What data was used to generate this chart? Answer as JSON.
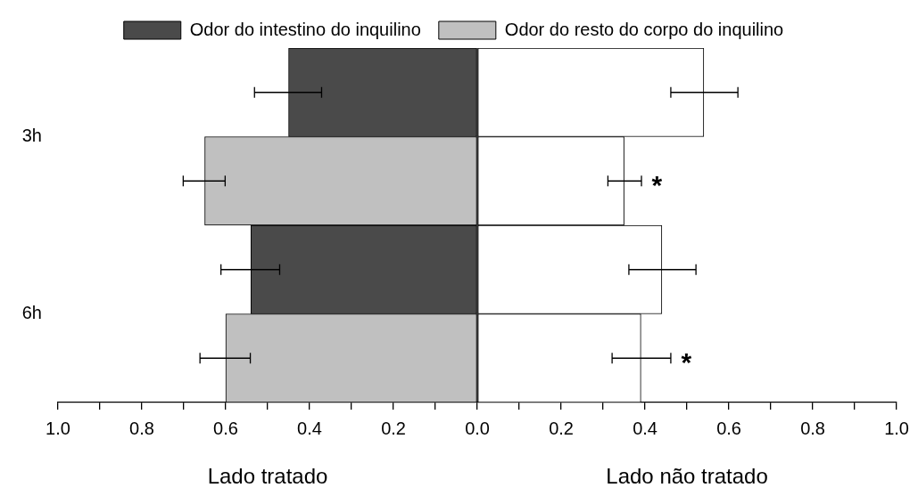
{
  "chart_data": {
    "type": "bar",
    "orientation": "horizontal",
    "stacked": true,
    "categories": [
      "3h",
      null,
      "6h",
      null
    ],
    "series": [
      {
        "name": "Odor do intestino do inquilino",
        "color": "#4a4a4a",
        "values": [
          -0.45,
          null,
          -0.54,
          null
        ],
        "errors": [
          0.08,
          null,
          0.07,
          null
        ]
      },
      {
        "name": "Odor do resto do corpo do inquilino",
        "color": "#c0c0c0",
        "values": [
          null,
          -0.65,
          null,
          -0.6
        ],
        "errors": [
          null,
          0.05,
          null,
          0.06
        ]
      },
      {
        "color": "#ffffff",
        "values": [
          0.54,
          null,
          0.44,
          null
        ],
        "errors": [
          0.08,
          null,
          0.08,
          null
        ]
      },
      {
        "color": "#ffffff",
        "values": [
          null,
          0.35,
          null,
          0.39
        ],
        "errors": [
          null,
          0.04,
          null,
          0.07
        ]
      }
    ],
    "xlim": [
      -1,
      1
    ],
    "xticks": [
      {
        "value": -1,
        "label": "1.0"
      },
      {
        "value": -0.9,
        "label": null
      },
      {
        "value": -0.8,
        "label": "0.8"
      },
      {
        "value": -0.7,
        "label": null
      },
      {
        "value": -0.6,
        "label": "0.6"
      },
      {
        "value": -0.5,
        "label": null
      },
      {
        "value": -0.4,
        "label": "0.4"
      },
      {
        "value": -0.3,
        "label": null
      },
      {
        "value": -0.2,
        "label": "0.2"
      },
      {
        "value": -0.1,
        "label": null
      },
      {
        "value": 0,
        "label": "0.0"
      },
      {
        "value": 0.1,
        "label": null
      },
      {
        "value": 0.2,
        "label": "0.2"
      },
      {
        "value": 0.3,
        "label": null
      },
      {
        "value": 0.4,
        "label": "0.4"
      },
      {
        "value": 0.5,
        "label": null
      },
      {
        "value": 0.6,
        "label": "0.6"
      },
      {
        "value": 0.7,
        "label": null
      },
      {
        "value": 0.8,
        "label": "0.8"
      },
      {
        "value": 0.9,
        "label": null
      },
      {
        "value": 1,
        "label": "1.0"
      }
    ],
    "ref_lines": [
      {
        "axis": "x",
        "value": 0,
        "color": "#000000"
      }
    ],
    "annotations": [
      "Lado tratado",
      "Lado não tratado",
      "*",
      "*"
    ],
    "legend": "top",
    "grid": false
  }
}
